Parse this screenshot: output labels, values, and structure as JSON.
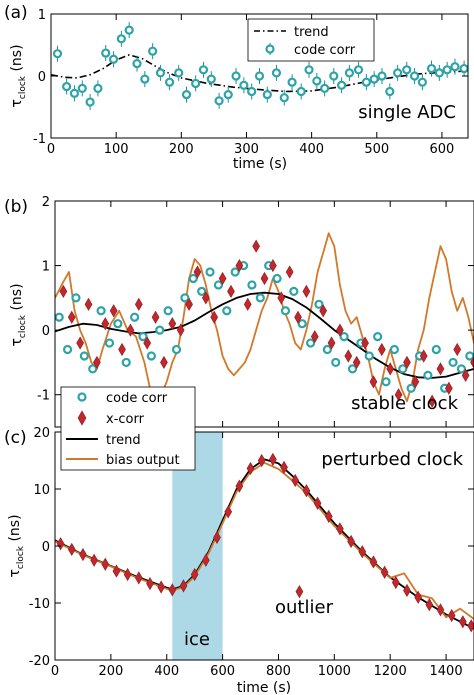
{
  "chart_data": [
    {
      "type": "line",
      "panel_label": "(a)",
      "annotation": "single ADC",
      "xlabel": "time (s)",
      "ylabel": "τ",
      "ylabel_sub": "clock",
      "ylabel_unit": " (ns)",
      "xlim": [
        0,
        640
      ],
      "ylim": [
        -1,
        1
      ],
      "xticks": [
        0,
        100,
        200,
        300,
        400,
        500,
        600
      ],
      "yticks": [
        -1,
        0,
        1
      ],
      "grid": false,
      "legend_position": "top-right",
      "series": [
        {
          "name": "trend",
          "style": "dash-dot",
          "color": "#000000",
          "x": [
            0,
            20,
            40,
            60,
            80,
            100,
            120,
            140,
            160,
            180,
            200,
            240,
            280,
            320,
            360,
            400,
            440,
            480,
            520,
            560,
            600,
            640
          ],
          "y": [
            0.02,
            -0.02,
            -0.03,
            0.02,
            0.12,
            0.26,
            0.34,
            0.28,
            0.16,
            0.05,
            -0.03,
            -0.12,
            -0.18,
            -0.22,
            -0.25,
            -0.24,
            -0.18,
            -0.1,
            -0.03,
            0.03,
            0.06,
            0.08
          ]
        },
        {
          "name": "code corr",
          "style": "marker-circle",
          "color": "#2ca3a8",
          "x": [
            10,
            24,
            36,
            48,
            60,
            72,
            84,
            96,
            108,
            120,
            132,
            144,
            156,
            168,
            182,
            196,
            208,
            222,
            234,
            246,
            258,
            272,
            284,
            296,
            308,
            320,
            332,
            346,
            358,
            370,
            384,
            396,
            408,
            420,
            434,
            446,
            458,
            472,
            484,
            496,
            508,
            520,
            532,
            546,
            558,
            570,
            584,
            596,
            608,
            620,
            634
          ],
          "y": [
            0.36,
            -0.17,
            -0.28,
            -0.2,
            -0.42,
            -0.2,
            0.37,
            0.27,
            0.6,
            0.74,
            0.2,
            -0.05,
            0.4,
            0.05,
            -0.1,
            0.05,
            -0.3,
            -0.12,
            0.1,
            -0.05,
            -0.4,
            -0.3,
            0.0,
            -0.15,
            -0.25,
            0.0,
            -0.3,
            0.05,
            -0.35,
            -0.1,
            -0.25,
            0.1,
            -0.08,
            -0.2,
            0.0,
            -0.15,
            0.05,
            0.1,
            -0.1,
            -0.05,
            0.0,
            -0.25,
            0.05,
            0.1,
            0.0,
            -0.1,
            0.12,
            0.05,
            0.1,
            0.15,
            0.12
          ]
        }
      ]
    },
    {
      "type": "line",
      "panel_label": "(b)",
      "annotation": "stable clock",
      "xlabel": "",
      "ylabel": "τ",
      "ylabel_sub": "clock",
      "ylabel_unit": " (ns)",
      "xlim": [
        0,
        1500
      ],
      "ylim": [
        -1.5,
        2
      ],
      "xticks": [
        0,
        200,
        400,
        600,
        800,
        1000,
        1200,
        1400
      ],
      "yticks": [
        -1,
        0,
        1,
        2
      ],
      "grid": false,
      "legend_position": "bottom-left",
      "series": [
        {
          "name": "bias output",
          "style": "line",
          "color": "#d2782a",
          "x": [
            0,
            30,
            50,
            70,
            90,
            110,
            130,
            150,
            170,
            200,
            230,
            260,
            290,
            320,
            340,
            360,
            380,
            400,
            420,
            440,
            460,
            480,
            500,
            520,
            540,
            560,
            580,
            600,
            620,
            640,
            660,
            680,
            700,
            720,
            740,
            760,
            780,
            800,
            820,
            840,
            860,
            880,
            900,
            920,
            940,
            960,
            980,
            1000,
            1020,
            1040,
            1060,
            1080,
            1100,
            1120,
            1140,
            1160,
            1180,
            1200,
            1220,
            1240,
            1260,
            1280,
            1300,
            1320,
            1340,
            1360,
            1380,
            1400,
            1420,
            1440,
            1460,
            1480,
            1500
          ],
          "y": [
            0.5,
            0.75,
            0.9,
            0.3,
            0.0,
            -0.2,
            -0.5,
            -0.6,
            -0.3,
            0.1,
            0.3,
            0.0,
            -0.1,
            -0.5,
            -0.9,
            -0.9,
            -1.0,
            -0.8,
            -0.5,
            -0.3,
            0.2,
            0.8,
            1.1,
            1.0,
            0.7,
            0.3,
            0.0,
            -0.4,
            -0.6,
            -0.7,
            -0.6,
            -0.5,
            -0.3,
            0.0,
            0.3,
            0.5,
            0.8,
            0.6,
            0.3,
            0.1,
            -0.2,
            -0.3,
            0.0,
            0.4,
            0.9,
            1.2,
            1.5,
            1.3,
            0.7,
            0.3,
            0.1,
            0.2,
            -0.1,
            -0.4,
            -0.8,
            -1.0,
            -0.6,
            -0.3,
            -0.6,
            -0.9,
            -1.1,
            -0.8,
            -0.3,
            0.0,
            0.5,
            0.9,
            1.3,
            1.1,
            0.6,
            0.3,
            0.5,
            0.2,
            -0.2
          ]
        },
        {
          "name": "trend",
          "style": "line",
          "color": "#000000",
          "x": [
            0,
            50,
            100,
            150,
            200,
            250,
            300,
            350,
            400,
            450,
            500,
            550,
            600,
            650,
            700,
            750,
            800,
            850,
            900,
            950,
            1000,
            1050,
            1100,
            1150,
            1200,
            1250,
            1300,
            1350,
            1400,
            1450,
            1500
          ],
          "y": [
            -0.02,
            0.05,
            0.1,
            0.08,
            0.02,
            -0.02,
            -0.05,
            -0.03,
            0.0,
            0.05,
            0.15,
            0.28,
            0.4,
            0.5,
            0.56,
            0.58,
            0.56,
            0.48,
            0.35,
            0.18,
            0.0,
            -0.15,
            -0.3,
            -0.45,
            -0.58,
            -0.68,
            -0.73,
            -0.74,
            -0.72,
            -0.66,
            -0.6
          ]
        },
        {
          "name": "code corr",
          "style": "marker-circle",
          "color": "#2ca3a8",
          "x": [
            15,
            45,
            75,
            105,
            135,
            165,
            195,
            225,
            255,
            285,
            315,
            345,
            375,
            405,
            435,
            465,
            495,
            525,
            555,
            585,
            615,
            645,
            675,
            705,
            735,
            765,
            795,
            825,
            855,
            885,
            915,
            945,
            975,
            1005,
            1035,
            1065,
            1095,
            1125,
            1155,
            1185,
            1215,
            1245,
            1275,
            1305,
            1335,
            1365,
            1395,
            1425,
            1455,
            1485
          ],
          "y": [
            0.2,
            -0.3,
            0.5,
            -0.4,
            -0.6,
            0.3,
            -0.2,
            0.1,
            -0.5,
            0.2,
            -0.1,
            -0.4,
            0.0,
            0.3,
            -0.3,
            0.5,
            0.8,
            0.6,
            0.9,
            0.7,
            0.3,
            0.9,
            1.0,
            0.7,
            0.5,
            1.0,
            0.8,
            0.3,
            0.6,
            0.1,
            -0.2,
            0.4,
            -0.3,
            -0.5,
            -0.1,
            -0.6,
            -0.2,
            -0.4,
            -0.1,
            -0.8,
            -0.3,
            -0.6,
            -0.9,
            -0.4,
            -0.7,
            -0.3,
            -0.9,
            -0.5,
            -0.6,
            -0.4
          ]
        },
        {
          "name": "x-corr",
          "style": "marker-diamond",
          "color": "#c0282d",
          "x": [
            30,
            60,
            90,
            120,
            150,
            180,
            210,
            240,
            270,
            300,
            330,
            360,
            390,
            420,
            450,
            480,
            510,
            540,
            570,
            600,
            630,
            660,
            690,
            720,
            750,
            780,
            810,
            840,
            870,
            900,
            930,
            960,
            990,
            1020,
            1050,
            1080,
            1110,
            1140,
            1170,
            1200,
            1230,
            1260,
            1290,
            1320,
            1350,
            1380,
            1410,
            1440,
            1470,
            1500
          ],
          "y": [
            0.6,
            0.2,
            -0.2,
            0.4,
            -0.5,
            0.1,
            0.3,
            -0.3,
            0.0,
            0.4,
            -0.2,
            0.2,
            -0.5,
            0.1,
            0.0,
            0.4,
            0.9,
            0.5,
            0.2,
            0.8,
            0.6,
            1.0,
            0.4,
            1.3,
            0.8,
            1.0,
            0.5,
            0.9,
            0.2,
            0.6,
            -0.1,
            0.3,
            -0.2,
            0.0,
            -0.4,
            -0.5,
            -0.2,
            -0.8,
            -0.3,
            -0.6,
            -1.0,
            -0.5,
            -0.8,
            -0.4,
            -1.1,
            -0.6,
            -0.9,
            -0.3,
            -0.7,
            -0.5
          ]
        }
      ]
    },
    {
      "type": "line",
      "panel_label": "(c)",
      "annotation": "perturbed clock",
      "xlabel": "time (s)",
      "ylabel": "τ",
      "ylabel_sub": "clock",
      "ylabel_unit": " (ns)",
      "xlim": [
        0,
        1500
      ],
      "ylim": [
        -20,
        20
      ],
      "xticks": [
        0,
        200,
        400,
        600,
        800,
        1000,
        1200,
        1400
      ],
      "yticks": [
        -20,
        -10,
        0,
        10,
        20
      ],
      "grid": false,
      "shaded_region": {
        "label": "ice",
        "x_range": [
          420,
          600
        ],
        "color": "#add8e6"
      },
      "text_annotations": [
        {
          "text": "outlier",
          "x": 870,
          "y": -10
        },
        {
          "text": "ice",
          "x": 510,
          "y": -18
        }
      ],
      "series": [
        {
          "name": "trend",
          "style": "line",
          "color": "#000000",
          "x": [
            0,
            100,
            200,
            300,
            400,
            420,
            460,
            500,
            550,
            600,
            650,
            700,
            750,
            800,
            850,
            900,
            1000,
            1100,
            1200,
            1300,
            1400,
            1500
          ],
          "y": [
            1,
            -1.5,
            -3.5,
            -5.5,
            -7.3,
            -7.6,
            -7.0,
            -5.0,
            -1.0,
            4.5,
            10.0,
            13.5,
            15.2,
            14.5,
            12.3,
            9.8,
            4.0,
            -1.0,
            -5.5,
            -9.0,
            -12.0,
            -14.5
          ]
        },
        {
          "name": "bias output",
          "style": "line",
          "color": "#d2782a",
          "x": [
            0,
            100,
            200,
            300,
            400,
            420,
            460,
            500,
            550,
            600,
            650,
            700,
            750,
            800,
            850,
            900,
            1000,
            1100,
            1200,
            1250,
            1300,
            1350,
            1400,
            1450,
            1500
          ],
          "y": [
            0.8,
            -1.6,
            -3.6,
            -5.7,
            -7.5,
            -7.8,
            -7.2,
            -5.3,
            -1.3,
            4.0,
            9.5,
            13.0,
            14.6,
            13.5,
            11.5,
            9.3,
            3.5,
            -1.3,
            -5.6,
            -4.8,
            -8.5,
            -9.2,
            -12.5,
            -11.0,
            -12.8
          ]
        },
        {
          "name": "x-corr",
          "style": "marker-diamond",
          "color": "#c0282d",
          "x": [
            20,
            60,
            100,
            140,
            180,
            220,
            260,
            300,
            340,
            380,
            420,
            460,
            500,
            540,
            580,
            620,
            660,
            700,
            740,
            780,
            820,
            860,
            875,
            900,
            940,
            980,
            1020,
            1060,
            1100,
            1140,
            1180,
            1220,
            1260,
            1300,
            1340,
            1380,
            1420,
            1460,
            1490
          ],
          "y": [
            0.4,
            -0.6,
            -1.5,
            -2.5,
            -3.2,
            -4.4,
            -5.0,
            -5.6,
            -6.6,
            -7.2,
            -7.7,
            -7.0,
            -5.0,
            -2.5,
            1.5,
            6.0,
            10.5,
            13.6,
            15.0,
            15.2,
            13.8,
            11.5,
            -8,
            9.7,
            7.5,
            5.2,
            3.0,
            0.8,
            -1.0,
            -2.8,
            -4.6,
            -6.4,
            -7.8,
            -9.0,
            -10.3,
            -11.2,
            -12.2,
            -13.3,
            -14.0
          ]
        },
        {
          "name": "code corr",
          "style": "marker-circle",
          "color": "#2ca3a8",
          "x": [],
          "y": []
        }
      ]
    }
  ]
}
